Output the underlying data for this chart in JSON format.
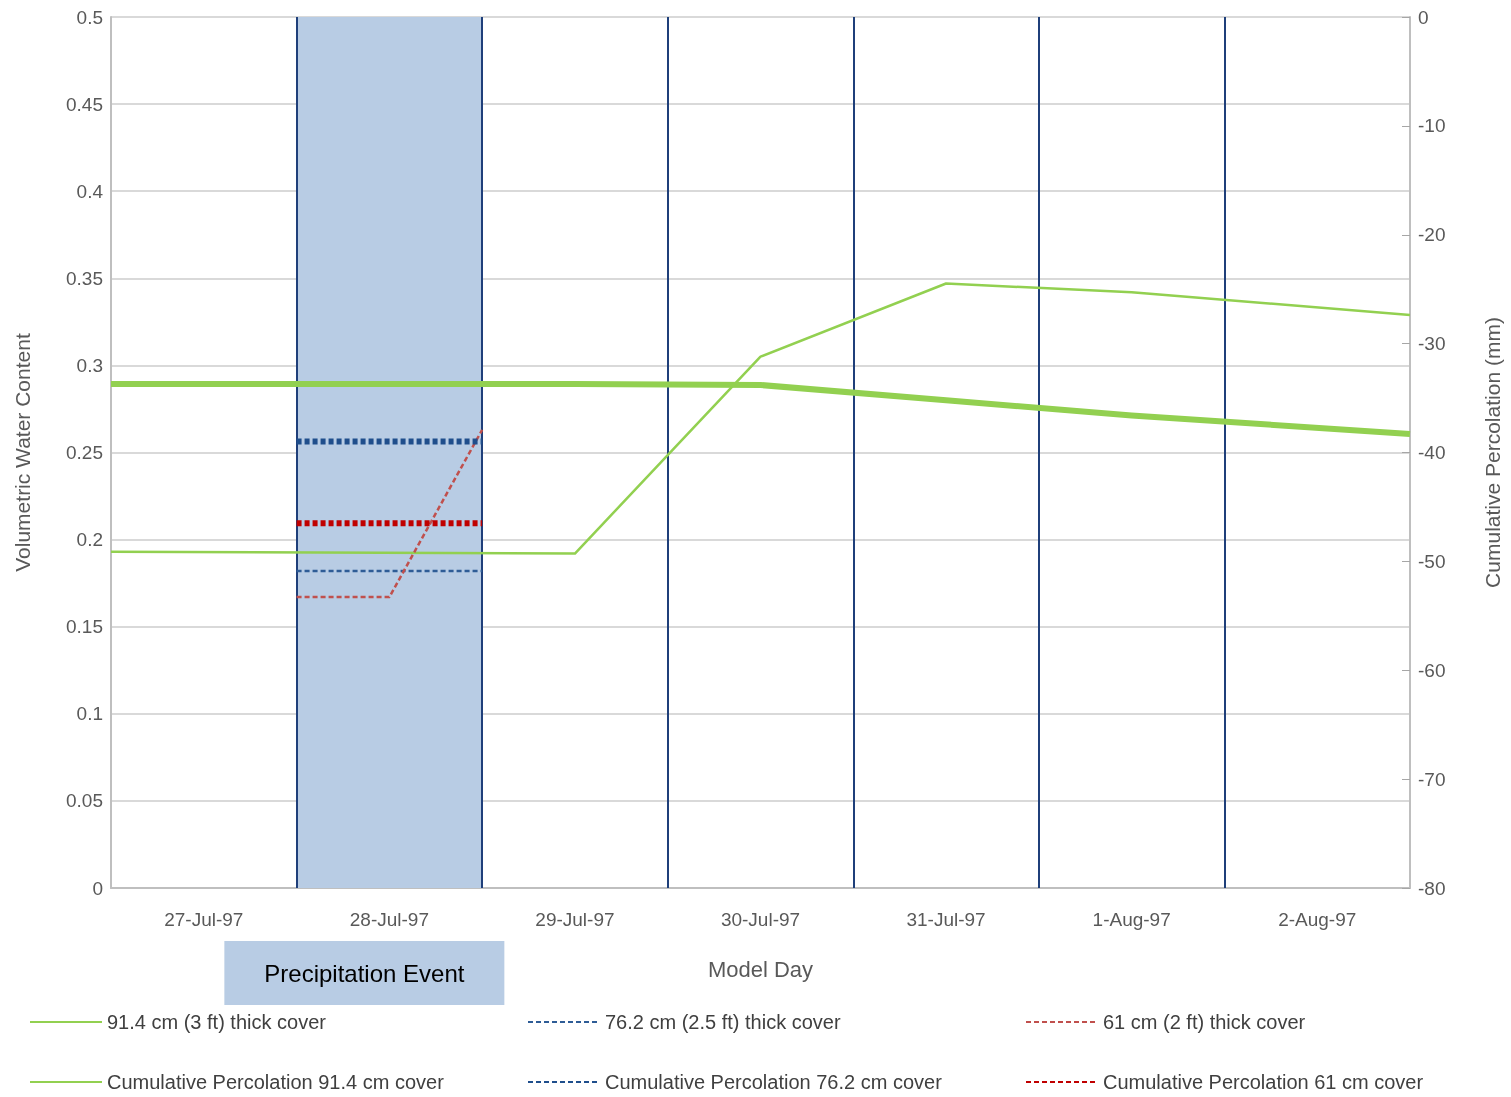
{
  "chart_data": {
    "type": "line",
    "xlabel": "Model Day",
    "ylabel": "Volumetric Water Content",
    "y2label": "Cumulative Percolation (mm)",
    "xlim": [
      "1997-07-27T00:00",
      "1997-08-03T00:00"
    ],
    "xticks": [
      {
        "value": "1997-07-27T12:00",
        "label": "27-Jul-97"
      },
      {
        "value": "1997-07-28T12:00",
        "label": "28-Jul-97"
      },
      {
        "value": "1997-07-29T12:00",
        "label": "29-Jul-97"
      },
      {
        "value": "1997-07-30T12:00",
        "label": "30-Jul-97"
      },
      {
        "value": "1997-07-31T12:00",
        "label": "31-Jul-97"
      },
      {
        "value": "1997-08-01T12:00",
        "label": "1-Aug-97"
      },
      {
        "value": "1997-08-02T12:00",
        "label": "2-Aug-97"
      }
    ],
    "ylim": [
      0,
      0.5
    ],
    "yticks": [
      0,
      0.05,
      0.1,
      0.15,
      0.2,
      0.25,
      0.3,
      0.35,
      0.4,
      0.45,
      0.5
    ],
    "y2lim": [
      -80,
      0
    ],
    "y2ticks": [
      -80,
      -70,
      -60,
      -50,
      -40,
      -30,
      -20,
      -10,
      0
    ],
    "grid": "y",
    "legend": "bottom",
    "marker": "none",
    "ref_lines": [
      {
        "axis": "x",
        "value": "1997-07-28T00:00",
        "color": "#1f3f7a"
      },
      {
        "axis": "x",
        "value": "1997-07-29T00:00",
        "color": "#1f3f7a"
      },
      {
        "axis": "x",
        "value": "1997-07-30T00:00",
        "color": "#1f3f7a"
      },
      {
        "axis": "x",
        "value": "1997-07-31T00:00",
        "color": "#1f3f7a"
      },
      {
        "axis": "x",
        "value": "1997-08-01T00:00",
        "color": "#1f3f7a"
      },
      {
        "axis": "x",
        "value": "1997-08-02T00:00",
        "color": "#1f3f7a"
      }
    ],
    "bands": [
      {
        "axis": "x",
        "from": "1997-07-28T00:00",
        "to": "1997-07-29T00:00",
        "label": "Precipitation Event",
        "color": "#b8cce4"
      }
    ],
    "series": [
      {
        "name": "91.4 cm (3 ft) thick cover",
        "color": "#92d050",
        "line_style": "solid",
        "x": [
          "1997-07-27T00:00",
          "1997-07-29T12:00",
          "1997-07-30T12:00",
          "1997-07-31T12:00",
          "1997-08-01T12:00",
          "1997-08-03T00:00"
        ],
        "values": [
          0.193,
          0.192,
          0.305,
          0.347,
          0.342,
          0.329
        ]
      },
      {
        "name": "76.2 cm (2.5 ft) thick cover",
        "color": "#2e5c96",
        "line_style": "dashed",
        "x": [
          "1997-07-28T00:00",
          "1997-07-29T00:00"
        ],
        "values": [
          0.182,
          0.182
        ]
      },
      {
        "name": "61 cm (2 ft) thick cover",
        "color": "#c0504d",
        "line_style": "dashed",
        "x": [
          "1997-07-28T00:00",
          "1997-07-28T12:00",
          "1997-07-29T00:00"
        ],
        "values": [
          0.167,
          0.167,
          0.263
        ]
      },
      {
        "name": "Cumulative Percolation 91.4 cm cover",
        "color": "#92d050",
        "line_style": "solid",
        "axis": "y2",
        "x": [
          "1997-07-27T00:00",
          "1997-07-29T12:00",
          "1997-07-30T12:00",
          "1997-07-31T12:00",
          "1997-08-01T12:00",
          "1997-08-03T00:00"
        ],
        "values": [
          -33.7,
          -33.7,
          -33.8,
          -35.2,
          -36.6,
          -38.3
        ]
      },
      {
        "name": "Cumulative Percolation 76.2 cm cover",
        "color": "#1f4e8c",
        "line_style": "dashed",
        "axis": "y2",
        "x": [
          "1997-07-28T00:00",
          "1997-07-29T00:00"
        ],
        "values": [
          -39.0,
          -39.0
        ]
      },
      {
        "name": "Cumulative Percolation 61 cm cover",
        "color": "#c00000",
        "line_style": "dashed",
        "axis": "y2",
        "x": [
          "1997-07-28T00:00",
          "1997-07-29T00:00"
        ],
        "values": [
          -46.5,
          -46.5
        ]
      }
    ]
  }
}
